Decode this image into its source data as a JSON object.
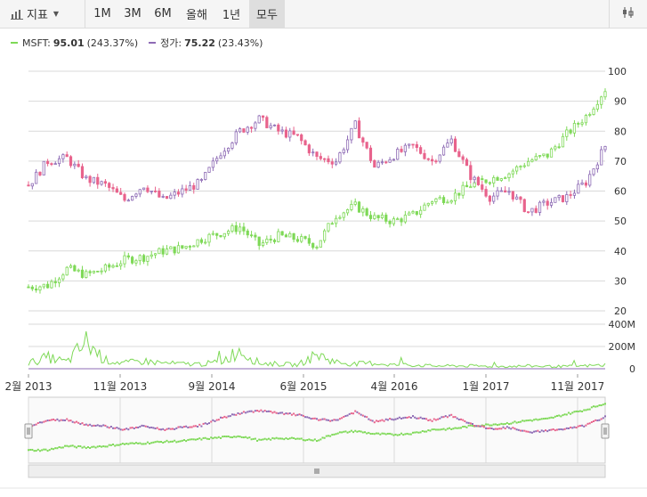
{
  "toolbar": {
    "indicators_label": "지표",
    "indicators_icon": "bar-chart-icon",
    "ranges": [
      "1M",
      "3M",
      "6M",
      "올해",
      "1년",
      "모두"
    ],
    "active_range": "모두",
    "settings_icon": "chart-settings-icon"
  },
  "legend": [
    {
      "name": "MSFT:",
      "value": "95.01",
      "change": "(243.37%)",
      "color": "#7ed957"
    },
    {
      "name": "정가:",
      "value": "75.22",
      "change": "(23.43%)",
      "color": "#8e6bb5"
    }
  ],
  "chart_data": {
    "type": "line",
    "x_ticks": [
      "2월 2013",
      "11월 2013",
      "9월 2014",
      "6월 2015",
      "4월 2016",
      "1월 2017",
      "11월 2017"
    ],
    "y_ticks": [
      "100",
      "90",
      "80",
      "70",
      "60",
      "50",
      "40",
      "30",
      "20"
    ],
    "ylim": [
      20,
      100
    ],
    "volume_ticks": [
      "400M",
      "200M",
      "0"
    ],
    "volume_ylim": [
      0,
      400000000
    ],
    "series": [
      {
        "name": "MSFT",
        "kind": "candlestick",
        "color": "#7ed957",
        "x": [
          "2013-02",
          "2013-04",
          "2013-06",
          "2013-08",
          "2013-10",
          "2013-12",
          "2014-02",
          "2014-04",
          "2014-06",
          "2014-08",
          "2014-10",
          "2014-12",
          "2015-02",
          "2015-04",
          "2015-06",
          "2015-08",
          "2015-10",
          "2015-12",
          "2016-02",
          "2016-04",
          "2016-06",
          "2016-08",
          "2016-10",
          "2016-12",
          "2017-02",
          "2017-04",
          "2017-06",
          "2017-08",
          "2017-10",
          "2017-12",
          "2018-02"
        ],
        "values": [
          28,
          28.5,
          34,
          32,
          34,
          37,
          38,
          40,
          41,
          44,
          46,
          48,
          42,
          45,
          44,
          42,
          52,
          55,
          51,
          50,
          52,
          57,
          58,
          62,
          64,
          66,
          70,
          72,
          79,
          85,
          94
        ]
      },
      {
        "name": "정가",
        "kind": "candlestick",
        "color": "#8e6bb5",
        "x": [
          "2013-02",
          "2013-04",
          "2013-06",
          "2013-08",
          "2013-10",
          "2013-12",
          "2014-02",
          "2014-04",
          "2014-06",
          "2014-08",
          "2014-10",
          "2014-12",
          "2015-02",
          "2015-04",
          "2015-06",
          "2015-08",
          "2015-10",
          "2015-12",
          "2016-02",
          "2016-04",
          "2016-06",
          "2016-08",
          "2016-10",
          "2016-12",
          "2017-02",
          "2017-04",
          "2017-06",
          "2017-08",
          "2017-10",
          "2017-12",
          "2018-02"
        ],
        "values": [
          62,
          70,
          71,
          64,
          62,
          57,
          62,
          57,
          60,
          63,
          73,
          80,
          84,
          80,
          78,
          71,
          70,
          82,
          68,
          72,
          75,
          70,
          77,
          65,
          58,
          60,
          53,
          56,
          58,
          63,
          75
        ]
      },
      {
        "name": "MSFT Volume",
        "kind": "volume",
        "color": "#7ed957",
        "x": [
          "2013-02",
          "2013-04",
          "2013-06",
          "2013-08",
          "2013-10",
          "2013-12",
          "2014-02",
          "2014-04",
          "2014-06",
          "2014-08",
          "2014-10",
          "2014-12",
          "2015-02",
          "2015-04",
          "2015-06",
          "2015-08",
          "2015-10",
          "2015-12",
          "2016-02",
          "2016-04",
          "2016-06",
          "2016-08",
          "2016-10",
          "2016-12",
          "2017-02",
          "2017-04",
          "2017-06",
          "2017-08",
          "2017-10",
          "2017-12",
          "2018-02"
        ],
        "values": [
          60000000,
          120000000,
          70000000,
          280000000,
          90000000,
          60000000,
          80000000,
          60000000,
          50000000,
          50000000,
          70000000,
          200000000,
          60000000,
          50000000,
          40000000,
          150000000,
          70000000,
          50000000,
          60000000,
          40000000,
          40000000,
          30000000,
          30000000,
          30000000,
          25000000,
          25000000,
          30000000,
          25000000,
          25000000,
          30000000,
          40000000
        ]
      }
    ],
    "grid": true,
    "navigator": true
  }
}
